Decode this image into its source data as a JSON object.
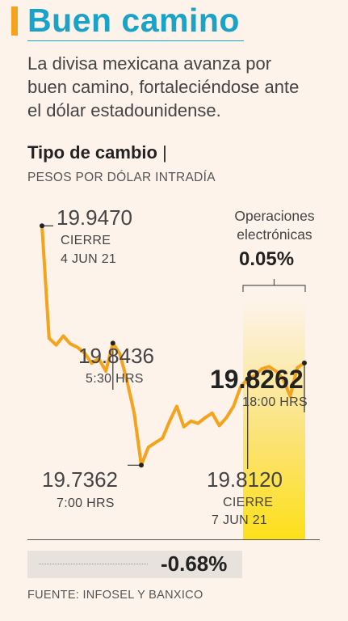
{
  "header": {
    "title": "Buen camino",
    "subtitle": "La divisa mexicana avanza por buen camino, fortaleciéndose ante el dólar estadounidense."
  },
  "chart_data": {
    "type": "line",
    "title": "Tipo de cambio",
    "unit_label": "PESOS POR DÓLAR INTRADÍA",
    "color": "#f5a21c",
    "ylim": [
      19.72,
      19.96
    ],
    "values": [
      19.947,
      19.848,
      19.842,
      19.85,
      19.843,
      19.84,
      19.835,
      19.826,
      19.83,
      19.819,
      19.8436,
      19.834,
      19.81,
      19.782,
      19.7362,
      19.752,
      19.756,
      19.76,
      19.775,
      19.788,
      19.77,
      19.775,
      19.773,
      19.778,
      19.782,
      19.771,
      19.778,
      19.788,
      19.805,
      19.812,
      19.815,
      19.821,
      19.823,
      19.819,
      19.812,
      19.797,
      19.822,
      19.8262
    ],
    "annotations": [
      {
        "value": "19.9470",
        "label": "CIERRE",
        "date": "4 JUN 21"
      },
      {
        "value": "19.8436",
        "label": "5:30 HRS"
      },
      {
        "value": "19.7362",
        "label": "7:00 HRS"
      },
      {
        "value": "19.8120",
        "label": "CIERRE",
        "date": "7 JUN 21"
      },
      {
        "value": "19.8262",
        "label": "18:00 HRS"
      }
    ],
    "electronic_ops": {
      "label_line1": "Operaciones",
      "label_line2": "electrónicas",
      "value": "0.05%"
    },
    "change": "-0.68%",
    "source": "FUENTE: INFOSEL Y BANXICO"
  }
}
